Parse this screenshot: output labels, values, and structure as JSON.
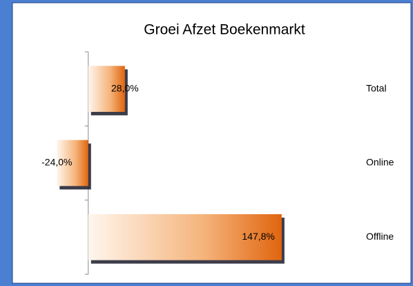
{
  "chart_data": {
    "type": "barh",
    "title": "Groei Afzet Boekenmarkt",
    "categories": [
      "Total",
      "Online",
      "Offline"
    ],
    "values": [
      28.0,
      -24.0,
      147.8
    ],
    "value_labels": [
      "28,0%",
      "-24,0%",
      "147,8%"
    ],
    "color": "#e0650f",
    "xlim": [
      -40,
      160
    ]
  }
}
